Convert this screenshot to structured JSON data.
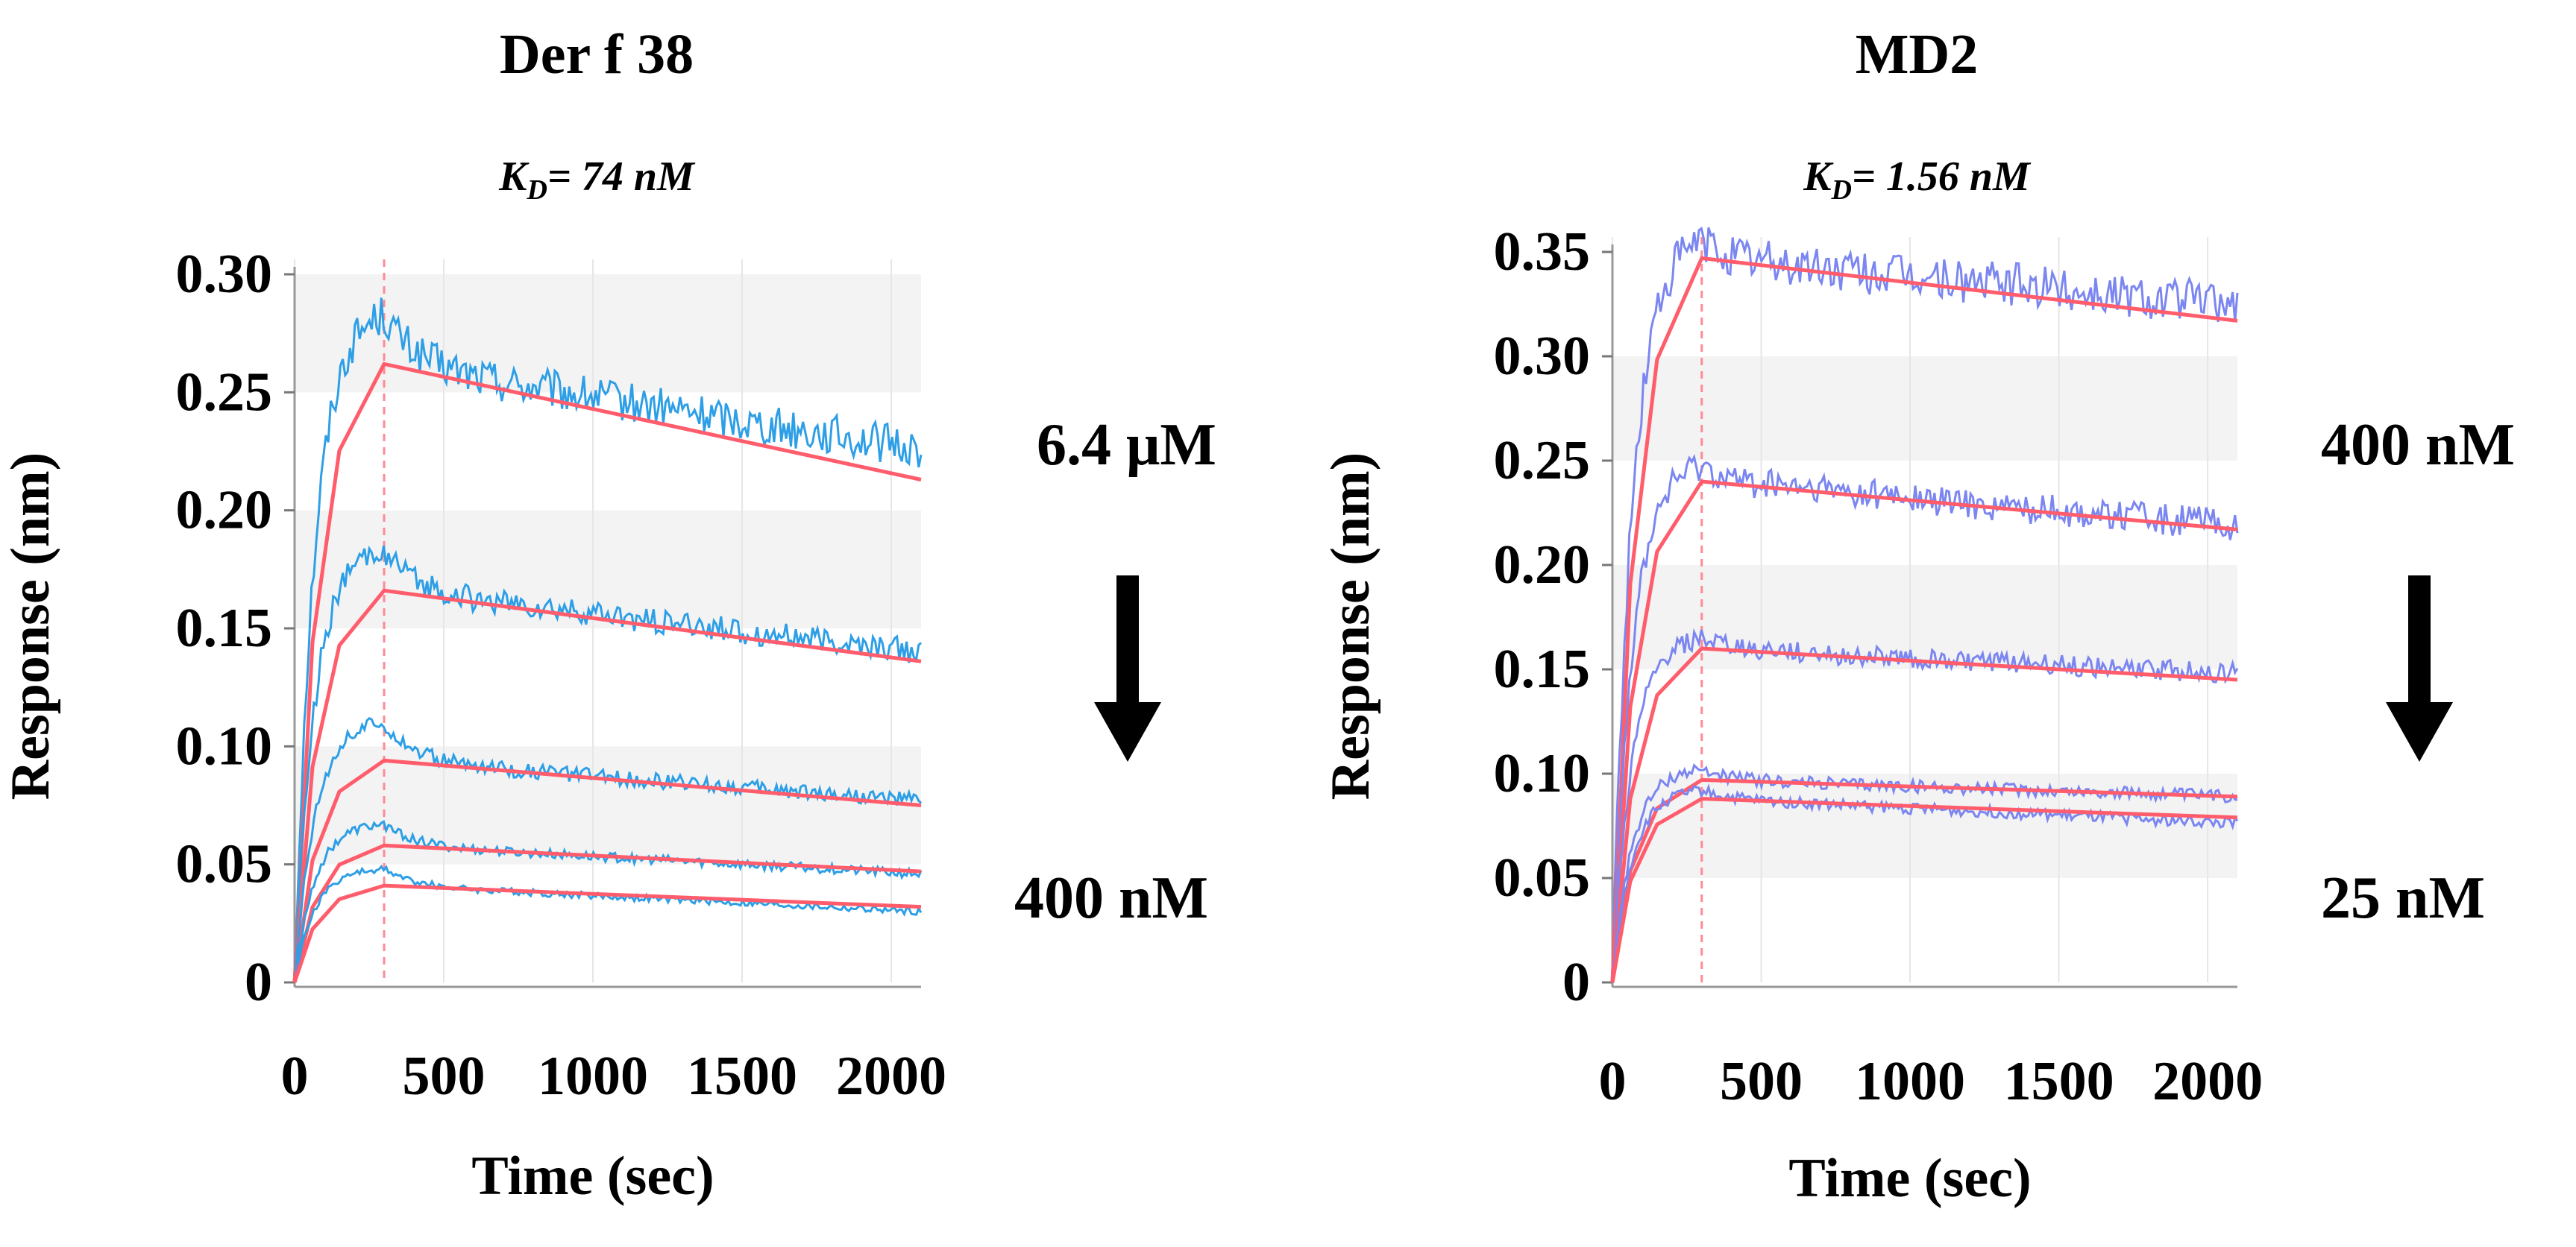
{
  "panels": [
    {
      "title": "Der f 38",
      "kd_prefix": "K",
      "kd_sub": "D",
      "kd_value": "= 74 nM",
      "conc_high": "6.4 μM",
      "conc_low": "400 nM"
    },
    {
      "title": "MD2",
      "kd_prefix": "K",
      "kd_sub": "D",
      "kd_value": "= 1.56 nM",
      "conc_high": "400 nM",
      "conc_low": "25 nM"
    }
  ],
  "chart_data": [
    {
      "type": "line",
      "title": "Der f 38",
      "xlabel": "Time (sec)",
      "ylabel": "Response (nm)",
      "xlim": [
        0,
        2100
      ],
      "ylim": [
        0,
        0.3
      ],
      "xticks": [
        0,
        500,
        1000,
        1500,
        2000
      ],
      "yticks": [
        0,
        0.05,
        0.1,
        0.15,
        0.2,
        0.25,
        0.3
      ],
      "ytick_labels": [
        "0",
        "0.05",
        "0.10",
        "0.15",
        "0.20",
        "0.25",
        "0.30"
      ],
      "association_end": 300,
      "measured_color": "#2e9fe6",
      "fit_color": "#ff5c6c",
      "series": [
        {
          "fit": [
            [
              0,
              0
            ],
            [
              300,
              0.262
            ],
            [
              2100,
              0.213
            ]
          ],
          "measured_peak": 0.283,
          "measured_end": 0.226
        },
        {
          "fit": [
            [
              0,
              0
            ],
            [
              300,
              0.166
            ],
            [
              2100,
              0.136
            ]
          ],
          "measured_peak": 0.183,
          "measured_end": 0.14
        },
        {
          "fit": [
            [
              0,
              0
            ],
            [
              300,
              0.094
            ],
            [
              2100,
              0.075
            ]
          ],
          "measured_peak": 0.11,
          "measured_end": 0.077
        },
        {
          "fit": [
            [
              0,
              0
            ],
            [
              300,
              0.058
            ],
            [
              2100,
              0.047
            ]
          ],
          "measured_peak": 0.067,
          "measured_end": 0.046
        },
        {
          "fit": [
            [
              0,
              0
            ],
            [
              300,
              0.041
            ],
            [
              2100,
              0.032
            ]
          ],
          "measured_peak": 0.048,
          "measured_end": 0.03
        }
      ]
    },
    {
      "type": "line",
      "title": "MD2",
      "xlabel": "Time (sec)",
      "ylabel": "Response (nm)",
      "xlim": [
        0,
        2100
      ],
      "ylim": [
        0,
        0.36
      ],
      "xticks": [
        0,
        500,
        1000,
        1500,
        2000
      ],
      "yticks": [
        0,
        0.05,
        0.1,
        0.15,
        0.2,
        0.25,
        0.3,
        0.35
      ],
      "ytick_labels": [
        "0",
        "0.05",
        "0.10",
        "0.15",
        "0.20",
        "0.25",
        "0.30",
        "0.35"
      ],
      "association_end": 300,
      "measured_color": "#7b86f0",
      "fit_color": "#ff5c6c",
      "series": [
        {
          "fit": [
            [
              0,
              0
            ],
            [
              300,
              0.347
            ],
            [
              2100,
              0.317
            ]
          ],
          "measured_peak": 0.355,
          "measured_end": 0.325
        },
        {
          "fit": [
            [
              0,
              0
            ],
            [
              300,
              0.24
            ],
            [
              2100,
              0.217
            ]
          ],
          "measured_peak": 0.248,
          "measured_end": 0.219
        },
        {
          "fit": [
            [
              0,
              0
            ],
            [
              300,
              0.16
            ],
            [
              2100,
              0.145
            ]
          ],
          "measured_peak": 0.165,
          "measured_end": 0.148
        },
        {
          "fit": [
            [
              0,
              0
            ],
            [
              300,
              0.097
            ],
            [
              2100,
              0.089
            ]
          ],
          "measured_peak": 0.102,
          "measured_end": 0.089
        },
        {
          "fit": [
            [
              0,
              0
            ],
            [
              300,
              0.088
            ],
            [
              2100,
              0.079
            ]
          ],
          "measured_peak": 0.092,
          "measured_end": 0.076
        }
      ]
    }
  ]
}
